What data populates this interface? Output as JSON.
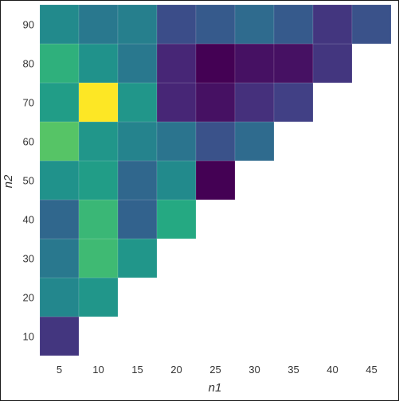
{
  "chart_data": {
    "type": "heatmap",
    "title": "",
    "xlabel": "n1",
    "ylabel": "n2",
    "x": [
      5,
      10,
      15,
      20,
      25,
      30,
      35,
      40,
      45
    ],
    "y": [
      10,
      20,
      30,
      40,
      50,
      60,
      70,
      80,
      90
    ],
    "colormap": "viridis",
    "grid": false,
    "legend": "none",
    "z": [
      [
        0.2,
        null,
        null,
        null,
        null,
        null,
        null,
        null,
        null
      ],
      [
        0.58,
        0.66,
        null,
        null,
        null,
        null,
        null,
        null,
        null
      ],
      [
        0.5,
        0.86,
        0.66,
        null,
        null,
        null,
        null,
        null,
        null
      ],
      [
        0.42,
        0.84,
        0.4,
        0.76,
        null,
        null,
        null,
        null,
        null
      ],
      [
        0.64,
        0.7,
        0.42,
        0.6,
        0.0,
        null,
        null,
        null,
        null
      ],
      [
        0.9,
        0.66,
        0.56,
        0.48,
        0.32,
        0.44,
        null,
        null,
        null
      ],
      [
        0.7,
        1.0,
        0.66,
        0.14,
        0.06,
        0.18,
        0.24,
        null,
        null
      ],
      [
        0.8,
        0.64,
        0.5,
        0.14,
        0.0,
        0.06,
        0.06,
        0.2,
        null
      ],
      [
        0.6,
        0.5,
        0.54,
        0.3,
        0.36,
        0.44,
        0.36,
        0.2,
        0.32
      ]
    ]
  }
}
